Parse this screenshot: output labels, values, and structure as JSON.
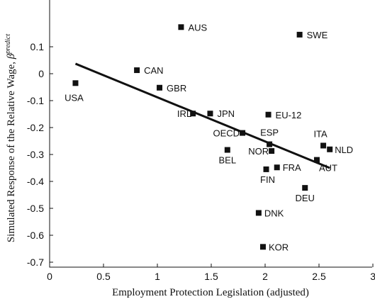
{
  "chart_data": {
    "type": "scatter",
    "title": "",
    "xlabel": "Employment Protection Legislation (adjusted)",
    "ylabel": "Simulated Response of the Relative Wage,",
    "ylabel_symbol": "β",
    "ylabel_superscript": "predict",
    "xlim": [
      0,
      3
    ],
    "ylim": [
      -0.7,
      0.18
    ],
    "x_ticks": [
      0,
      0.5,
      1,
      1.5,
      2,
      2.5,
      3
    ],
    "x_tick_labels": [
      "0",
      "0.5",
      "1",
      "1.5",
      "2",
      "2.5",
      "3"
    ],
    "y_ticks": [
      0.1,
      0,
      -0.1,
      -0.2,
      -0.3,
      -0.4,
      -0.5,
      -0.6,
      -0.7
    ],
    "y_tick_labels": [
      "0.1",
      "0",
      "-0.1",
      "-0.2",
      "-0.3",
      "-0.4",
      "-0.5",
      "-0.6",
      "-0.7"
    ],
    "grid": false,
    "points": [
      {
        "label": "AUS",
        "x": 1.22,
        "y": 0.173
      },
      {
        "label": "SWE",
        "x": 2.32,
        "y": 0.145
      },
      {
        "label": "USA",
        "x": 0.24,
        "y": -0.035
      },
      {
        "label": "CAN",
        "x": 0.81,
        "y": 0.013
      },
      {
        "label": "GBR",
        "x": 1.02,
        "y": -0.052
      },
      {
        "label": "IRL",
        "x": 1.33,
        "y": -0.148
      },
      {
        "label": "JPN",
        "x": 1.49,
        "y": -0.148
      },
      {
        "label": "EU-12",
        "x": 2.03,
        "y": -0.152
      },
      {
        "label": "OECD",
        "x": 1.79,
        "y": -0.22
      },
      {
        "label": "ESP",
        "x": 2.04,
        "y": -0.262
      },
      {
        "label": "BEL",
        "x": 1.65,
        "y": -0.283
      },
      {
        "label": "NOR",
        "x": 2.06,
        "y": -0.287
      },
      {
        "label": "ITA",
        "x": 2.54,
        "y": -0.267
      },
      {
        "label": "NLD",
        "x": 2.6,
        "y": -0.281
      },
      {
        "label": "AUT",
        "x": 2.48,
        "y": -0.32
      },
      {
        "label": "FRA",
        "x": 2.11,
        "y": -0.348
      },
      {
        "label": "FIN",
        "x": 2.01,
        "y": -0.355
      },
      {
        "label": "DEU",
        "x": 2.37,
        "y": -0.424
      },
      {
        "label": "DNK",
        "x": 1.94,
        "y": -0.517
      },
      {
        "label": "KOR",
        "x": 1.98,
        "y": -0.643
      }
    ],
    "fit_line": {
      "x": [
        0.24,
        2.6
      ],
      "y": [
        0.037,
        -0.35
      ]
    }
  }
}
